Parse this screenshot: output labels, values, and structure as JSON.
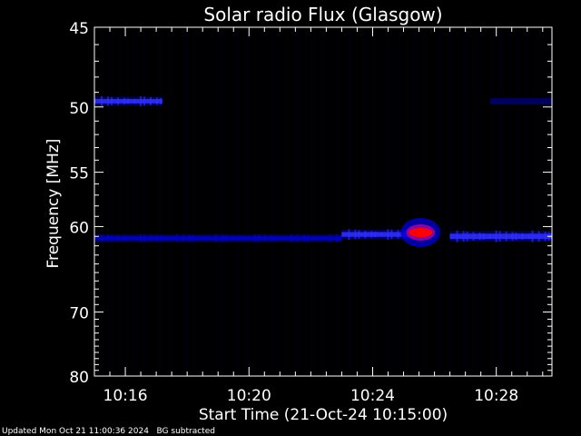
{
  "chart_data": {
    "type": "heatmap",
    "title": "Solar radio Flux (Glasgow)",
    "xlabel": "Start Time (21-Oct-24 10:15:00)",
    "ylabel": "Frequency [MHz]",
    "x_tick_labels": [
      "10:16",
      "10:20",
      "10:24",
      "10:28"
    ],
    "x_tick_minutes": [
      1,
      5,
      9,
      13
    ],
    "xlim_minutes": [
      0,
      14.8
    ],
    "y_tick_labels": [
      "45",
      "50",
      "55",
      "60",
      "70",
      "80"
    ],
    "y_tick_values": [
      45,
      50,
      55,
      60,
      70,
      80
    ],
    "ylim": [
      45,
      80
    ],
    "y_scale": "reciprocal",
    "colormap": [
      "#000000",
      "#000060",
      "#0000c8",
      "#3030ff",
      "#9000a0",
      "#ff0000"
    ],
    "features": [
      {
        "kind": "band",
        "freq_mhz": 61.2,
        "t_start": 0,
        "t_end": 8.0,
        "level": 0.35
      },
      {
        "kind": "band",
        "freq_mhz": 60.8,
        "t_start": 8.0,
        "t_end": 10.2,
        "level": 0.55
      },
      {
        "kind": "burst",
        "freq_mhz": 60.6,
        "t_start": 10.2,
        "t_end": 10.9,
        "level": 0.95
      },
      {
        "kind": "band",
        "freq_mhz": 61.0,
        "t_start": 11.5,
        "t_end": 14.8,
        "level": 0.65
      },
      {
        "kind": "band",
        "freq_mhz": 49.6,
        "t_start": 0,
        "t_end": 2.2,
        "level": 0.5
      },
      {
        "kind": "band",
        "freq_mhz": 49.6,
        "t_start": 12.8,
        "t_end": 14.8,
        "level": 0.25
      }
    ]
  },
  "footer": {
    "updated": "Updated Mon Oct 21 11:00:36 2024",
    "mode": "BG subtracted"
  }
}
